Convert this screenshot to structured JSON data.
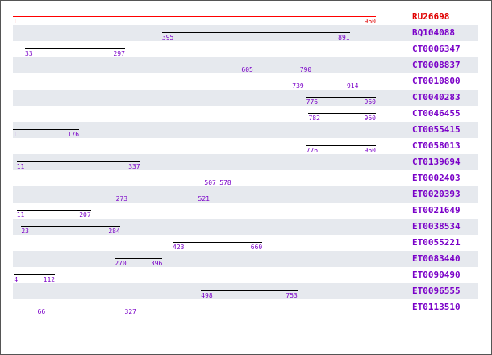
{
  "reference": {
    "name": "RU26698",
    "start": 1,
    "end": 960,
    "start_label": "1",
    "end_label": "960"
  },
  "alignments": [
    {
      "name": "BQ104088",
      "start": 395,
      "end": 891,
      "start_label": "395",
      "end_label": "891"
    },
    {
      "name": "CT0006347",
      "start": 33,
      "end": 297,
      "start_label": "33",
      "end_label": "297"
    },
    {
      "name": "CT0008837",
      "start": 605,
      "end": 790,
      "start_label": "605",
      "end_label": "790"
    },
    {
      "name": "CT0010800",
      "start": 739,
      "end": 914,
      "start_label": "739",
      "end_label": "914"
    },
    {
      "name": "CT0040283",
      "start": 776,
      "end": 960,
      "start_label": "776",
      "end_label": "960"
    },
    {
      "name": "CT0046455",
      "start": 782,
      "end": 960,
      "start_label": "782",
      "end_label": "960"
    },
    {
      "name": "CT0055415",
      "start": 1,
      "end": 176,
      "start_label": "1",
      "end_label": "176"
    },
    {
      "name": "CT0058013",
      "start": 776,
      "end": 960,
      "start_label": "776",
      "end_label": "960"
    },
    {
      "name": "CT0139694",
      "start": 11,
      "end": 337,
      "start_label": "11",
      "end_label": "337"
    },
    {
      "name": "ET0002403",
      "start": 507,
      "end": 578,
      "start_label": "507",
      "end_label": "578"
    },
    {
      "name": "ET0020393",
      "start": 273,
      "end": 521,
      "start_label": "273",
      "end_label": "521"
    },
    {
      "name": "ET0021649",
      "start": 11,
      "end": 207,
      "start_label": "11",
      "end_label": "207"
    },
    {
      "name": "ET0038534",
      "start": 23,
      "end": 284,
      "start_label": "23",
      "end_label": "284"
    },
    {
      "name": "ET0055221",
      "start": 423,
      "end": 660,
      "start_label": "423",
      "end_label": "660"
    },
    {
      "name": "ET0083440",
      "start": 270,
      "end": 396,
      "start_label": "270",
      "end_label": "396"
    },
    {
      "name": "ET0090490",
      "start": 4,
      "end": 112,
      "start_label": "4",
      "end_label": "112"
    },
    {
      "name": "ET0096555",
      "start": 498,
      "end": 753,
      "start_label": "498",
      "end_label": "753"
    },
    {
      "name": "ET0113510",
      "start": 66,
      "end": 327,
      "start_label": "66",
      "end_label": "327"
    }
  ],
  "colors": {
    "reference": "#ff0000",
    "text": "#7a00c8",
    "stripe": "#e6e9ee",
    "bar": "#000000"
  }
}
